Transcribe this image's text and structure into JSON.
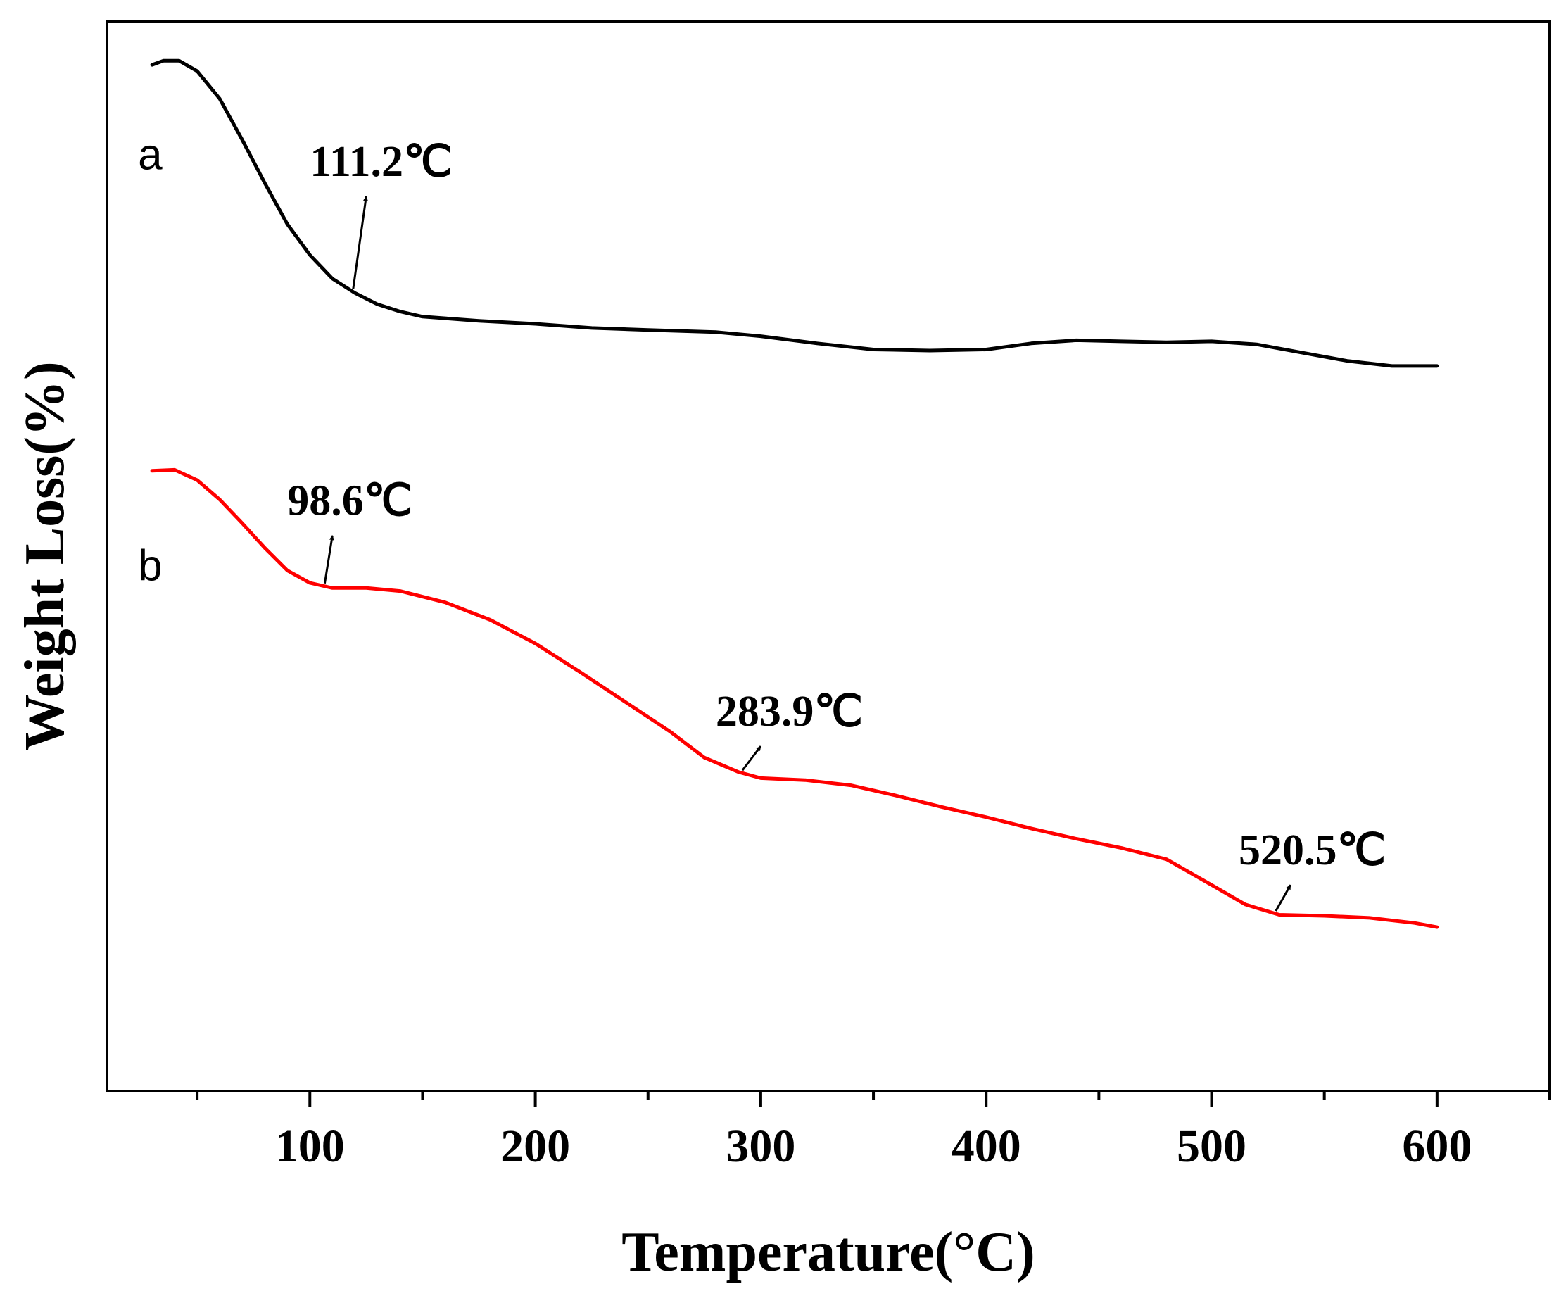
{
  "chart_data": {
    "type": "line",
    "title": "",
    "xlabel": "Temperature(°C)",
    "ylabel": "Weight Loss(%)",
    "xlim": [
      10,
      650
    ],
    "ylim": [
      0,
      100
    ],
    "y_ticks_shown": false,
    "x_ticks": [
      {
        "value": 100,
        "label": "100"
      },
      {
        "value": 200,
        "label": "200"
      },
      {
        "value": 300,
        "label": "300"
      },
      {
        "value": 400,
        "label": "400"
      },
      {
        "value": 500,
        "label": "500"
      },
      {
        "value": 600,
        "label": "600"
      }
    ],
    "x_minor_ticks": [
      50,
      150,
      250,
      350,
      450,
      550,
      650
    ],
    "series": [
      {
        "name": "a",
        "color": "#000000",
        "label_at": [
          30,
          89
        ],
        "points": [
          [
            30,
            97.8
          ],
          [
            35,
            98.2
          ],
          [
            42,
            98.2
          ],
          [
            50,
            97.2
          ],
          [
            60,
            94.5
          ],
          [
            70,
            90.5
          ],
          [
            80,
            86.3
          ],
          [
            90,
            82.3
          ],
          [
            100,
            79.3
          ],
          [
            110,
            77.0
          ],
          [
            120,
            75.6
          ],
          [
            130,
            74.5
          ],
          [
            140,
            73.8
          ],
          [
            150,
            73.3
          ],
          [
            175,
            72.9
          ],
          [
            200,
            72.6
          ],
          [
            225,
            72.2
          ],
          [
            250,
            72.0
          ],
          [
            280,
            71.8
          ],
          [
            300,
            71.4
          ],
          [
            325,
            70.7
          ],
          [
            350,
            70.1
          ],
          [
            375,
            70.0
          ],
          [
            400,
            70.1
          ],
          [
            420,
            70.7
          ],
          [
            440,
            71.0
          ],
          [
            460,
            70.9
          ],
          [
            480,
            70.8
          ],
          [
            500,
            70.9
          ],
          [
            520,
            70.6
          ],
          [
            540,
            69.8
          ],
          [
            560,
            69.0
          ],
          [
            580,
            68.5
          ],
          [
            600,
            68.5
          ]
        ]
      },
      {
        "name": "b",
        "color": "#ff0000",
        "label_at": [
          30,
          49
        ],
        "points": [
          [
            30,
            58.3
          ],
          [
            40,
            58.4
          ],
          [
            50,
            57.4
          ],
          [
            60,
            55.5
          ],
          [
            70,
            53.2
          ],
          [
            80,
            50.8
          ],
          [
            90,
            48.6
          ],
          [
            100,
            47.4
          ],
          [
            110,
            46.9
          ],
          [
            125,
            46.9
          ],
          [
            140,
            46.6
          ],
          [
            160,
            45.5
          ],
          [
            180,
            43.8
          ],
          [
            200,
            41.5
          ],
          [
            220,
            38.7
          ],
          [
            240,
            35.8
          ],
          [
            260,
            32.9
          ],
          [
            275,
            30.4
          ],
          [
            290,
            29.0
          ],
          [
            300,
            28.4
          ],
          [
            320,
            28.2
          ],
          [
            340,
            27.7
          ],
          [
            360,
            26.7
          ],
          [
            380,
            25.6
          ],
          [
            400,
            24.6
          ],
          [
            420,
            23.5
          ],
          [
            440,
            22.5
          ],
          [
            460,
            21.6
          ],
          [
            480,
            20.5
          ],
          [
            500,
            18.0
          ],
          [
            515,
            16.1
          ],
          [
            530,
            15.1
          ],
          [
            550,
            15.0
          ],
          [
            570,
            14.8
          ],
          [
            590,
            14.3
          ],
          [
            600,
            13.9
          ]
        ]
      }
    ],
    "annotations": [
      {
        "text": "111.2℃",
        "x": 111.2,
        "series": "a",
        "arrow_to": [
          125,
          85
        ],
        "label_at": [
          100,
          87
        ]
      },
      {
        "text": "98.6℃",
        "x": 98.6,
        "series": "b",
        "arrow_to": [
          110,
          52
        ],
        "label_at": [
          90,
          54
        ]
      },
      {
        "text": "283.9℃",
        "x": 283.9,
        "series": "b",
        "arrow_to": [
          300,
          31.5
        ],
        "label_at": [
          280,
          33.5
        ]
      },
      {
        "text": "520.5℃",
        "x": 520.5,
        "series": "b",
        "arrow_to": [
          535,
          18
        ],
        "label_at": [
          512,
          20
        ]
      }
    ]
  }
}
